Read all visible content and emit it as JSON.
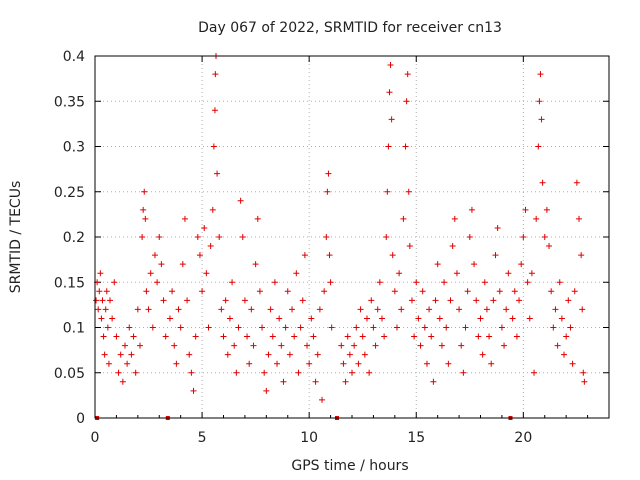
{
  "chart_data": {
    "type": "scatter",
    "title": "Day 067 of 2022, SRMTID for receiver cn13",
    "xlabel": "GPS time / hours",
    "ylabel": "SRMTID / TECUs",
    "xlim": [
      0,
      24
    ],
    "ylim": [
      0,
      0.4
    ],
    "x_ticks": [
      0,
      5,
      10,
      15,
      20
    ],
    "y_ticks": [
      0,
      0.05,
      0.1,
      0.15,
      0.2,
      0.25,
      0.3,
      0.35,
      0.4
    ],
    "grid": true,
    "marker": "+",
    "series_color": "#e00000",
    "zero_markers_x": [
      0.1,
      3.4,
      11.3,
      19.4
    ],
    "series": [
      {
        "name": "cn13",
        "points": [
          [
            0.05,
            0.13
          ],
          [
            0.1,
            0.15
          ],
          [
            0.15,
            0.12
          ],
          [
            0.2,
            0.14
          ],
          [
            0.25,
            0.16
          ],
          [
            0.3,
            0.11
          ],
          [
            0.35,
            0.13
          ],
          [
            0.4,
            0.09
          ],
          [
            0.45,
            0.07
          ],
          [
            0.5,
            0.12
          ],
          [
            0.55,
            0.14
          ],
          [
            0.6,
            0.1
          ],
          [
            0.65,
            0.06
          ],
          [
            0.7,
            0.13
          ],
          [
            0.8,
            0.11
          ],
          [
            0.9,
            0.15
          ],
          [
            1.0,
            0.09
          ],
          [
            1.1,
            0.05
          ],
          [
            1.2,
            0.07
          ],
          [
            1.3,
            0.04
          ],
          [
            1.4,
            0.08
          ],
          [
            1.5,
            0.06
          ],
          [
            1.6,
            0.1
          ],
          [
            1.7,
            0.07
          ],
          [
            1.8,
            0.09
          ],
          [
            1.9,
            0.05
          ],
          [
            2.0,
            0.12
          ],
          [
            2.1,
            0.08
          ],
          [
            2.2,
            0.2
          ],
          [
            2.25,
            0.23
          ],
          [
            2.3,
            0.25
          ],
          [
            2.35,
            0.22
          ],
          [
            2.4,
            0.14
          ],
          [
            2.5,
            0.12
          ],
          [
            2.6,
            0.16
          ],
          [
            2.7,
            0.1
          ],
          [
            2.8,
            0.18
          ],
          [
            2.9,
            0.15
          ],
          [
            3.0,
            0.2
          ],
          [
            3.1,
            0.17
          ],
          [
            3.2,
            0.13
          ],
          [
            3.3,
            0.09
          ],
          [
            3.5,
            0.11
          ],
          [
            3.6,
            0.14
          ],
          [
            3.7,
            0.08
          ],
          [
            3.8,
            0.06
          ],
          [
            3.9,
            0.12
          ],
          [
            4.0,
            0.1
          ],
          [
            4.1,
            0.17
          ],
          [
            4.2,
            0.22
          ],
          [
            4.3,
            0.13
          ],
          [
            4.4,
            0.07
          ],
          [
            4.5,
            0.05
          ],
          [
            4.6,
            0.03
          ],
          [
            4.7,
            0.09
          ],
          [
            4.8,
            0.2
          ],
          [
            4.9,
            0.18
          ],
          [
            5.0,
            0.14
          ],
          [
            5.1,
            0.21
          ],
          [
            5.2,
            0.16
          ],
          [
            5.3,
            0.1
          ],
          [
            5.4,
            0.19
          ],
          [
            5.5,
            0.23
          ],
          [
            5.55,
            0.3
          ],
          [
            5.6,
            0.34
          ],
          [
            5.62,
            0.38
          ],
          [
            5.65,
            0.4
          ],
          [
            5.7,
            0.27
          ],
          [
            5.8,
            0.2
          ],
          [
            5.9,
            0.12
          ],
          [
            6.0,
            0.09
          ],
          [
            6.1,
            0.13
          ],
          [
            6.2,
            0.07
          ],
          [
            6.3,
            0.11
          ],
          [
            6.4,
            0.15
          ],
          [
            6.5,
            0.08
          ],
          [
            6.6,
            0.05
          ],
          [
            6.7,
            0.1
          ],
          [
            6.8,
            0.24
          ],
          [
            6.9,
            0.2
          ],
          [
            7.0,
            0.13
          ],
          [
            7.1,
            0.09
          ],
          [
            7.2,
            0.06
          ],
          [
            7.3,
            0.12
          ],
          [
            7.4,
            0.08
          ],
          [
            7.5,
            0.17
          ],
          [
            7.6,
            0.22
          ],
          [
            7.7,
            0.14
          ],
          [
            7.8,
            0.1
          ],
          [
            7.9,
            0.05
          ],
          [
            8.0,
            0.03
          ],
          [
            8.1,
            0.07
          ],
          [
            8.2,
            0.12
          ],
          [
            8.3,
            0.09
          ],
          [
            8.4,
            0.15
          ],
          [
            8.5,
            0.06
          ],
          [
            8.6,
            0.11
          ],
          [
            8.7,
            0.08
          ],
          [
            8.8,
            0.04
          ],
          [
            8.9,
            0.1
          ],
          [
            9.0,
            0.14
          ],
          [
            9.1,
            0.07
          ],
          [
            9.2,
            0.12
          ],
          [
            9.3,
            0.09
          ],
          [
            9.4,
            0.16
          ],
          [
            9.5,
            0.05
          ],
          [
            9.6,
            0.1
          ],
          [
            9.7,
            0.13
          ],
          [
            9.8,
            0.18
          ],
          [
            9.9,
            0.08
          ],
          [
            10.0,
            0.06
          ],
          [
            10.1,
            0.11
          ],
          [
            10.2,
            0.09
          ],
          [
            10.3,
            0.04
          ],
          [
            10.4,
            0.07
          ],
          [
            10.5,
            0.12
          ],
          [
            10.6,
            0.02
          ],
          [
            10.7,
            0.14
          ],
          [
            10.8,
            0.2
          ],
          [
            10.85,
            0.25
          ],
          [
            10.9,
            0.27
          ],
          [
            10.95,
            0.18
          ],
          [
            11.0,
            0.15
          ],
          [
            11.05,
            0.1
          ],
          [
            11.5,
            0.08
          ],
          [
            11.6,
            0.06
          ],
          [
            11.7,
            0.04
          ],
          [
            11.8,
            0.09
          ],
          [
            11.9,
            0.07
          ],
          [
            12.0,
            0.05
          ],
          [
            12.1,
            0.08
          ],
          [
            12.2,
            0.1
          ],
          [
            12.3,
            0.06
          ],
          [
            12.4,
            0.12
          ],
          [
            12.5,
            0.09
          ],
          [
            12.6,
            0.07
          ],
          [
            12.7,
            0.11
          ],
          [
            12.8,
            0.05
          ],
          [
            12.9,
            0.13
          ],
          [
            13.0,
            0.1
          ],
          [
            13.1,
            0.08
          ],
          [
            13.2,
            0.12
          ],
          [
            13.3,
            0.15
          ],
          [
            13.4,
            0.11
          ],
          [
            13.5,
            0.09
          ],
          [
            13.6,
            0.2
          ],
          [
            13.65,
            0.25
          ],
          [
            13.7,
            0.3
          ],
          [
            13.75,
            0.36
          ],
          [
            13.8,
            0.39
          ],
          [
            13.85,
            0.33
          ],
          [
            13.9,
            0.18
          ],
          [
            14.0,
            0.14
          ],
          [
            14.1,
            0.1
          ],
          [
            14.2,
            0.16
          ],
          [
            14.3,
            0.12
          ],
          [
            14.4,
            0.22
          ],
          [
            14.5,
            0.3
          ],
          [
            14.55,
            0.35
          ],
          [
            14.6,
            0.38
          ],
          [
            14.65,
            0.25
          ],
          [
            14.7,
            0.19
          ],
          [
            14.8,
            0.13
          ],
          [
            14.9,
            0.09
          ],
          [
            15.0,
            0.15
          ],
          [
            15.1,
            0.11
          ],
          [
            15.2,
            0.08
          ],
          [
            15.3,
            0.14
          ],
          [
            15.4,
            0.1
          ],
          [
            15.5,
            0.06
          ],
          [
            15.6,
            0.12
          ],
          [
            15.7,
            0.09
          ],
          [
            15.8,
            0.04
          ],
          [
            15.9,
            0.13
          ],
          [
            16.0,
            0.17
          ],
          [
            16.1,
            0.11
          ],
          [
            16.2,
            0.08
          ],
          [
            16.3,
            0.15
          ],
          [
            16.4,
            0.1
          ],
          [
            16.5,
            0.06
          ],
          [
            16.6,
            0.13
          ],
          [
            16.7,
            0.19
          ],
          [
            16.8,
            0.22
          ],
          [
            16.9,
            0.16
          ],
          [
            17.0,
            0.12
          ],
          [
            17.1,
            0.08
          ],
          [
            17.2,
            0.05
          ],
          [
            17.3,
            0.1
          ],
          [
            17.4,
            0.14
          ],
          [
            17.5,
            0.2
          ],
          [
            17.6,
            0.23
          ],
          [
            17.7,
            0.17
          ],
          [
            17.8,
            0.13
          ],
          [
            17.9,
            0.09
          ],
          [
            18.0,
            0.11
          ],
          [
            18.1,
            0.07
          ],
          [
            18.2,
            0.15
          ],
          [
            18.3,
            0.12
          ],
          [
            18.4,
            0.09
          ],
          [
            18.5,
            0.06
          ],
          [
            18.6,
            0.13
          ],
          [
            18.7,
            0.18
          ],
          [
            18.8,
            0.21
          ],
          [
            18.9,
            0.14
          ],
          [
            19.0,
            0.1
          ],
          [
            19.1,
            0.08
          ],
          [
            19.2,
            0.12
          ],
          [
            19.3,
            0.16
          ],
          [
            19.5,
            0.11
          ],
          [
            19.6,
            0.14
          ],
          [
            19.7,
            0.09
          ],
          [
            19.8,
            0.13
          ],
          [
            19.9,
            0.17
          ],
          [
            20.0,
            0.2
          ],
          [
            20.1,
            0.23
          ],
          [
            20.2,
            0.15
          ],
          [
            20.3,
            0.11
          ],
          [
            20.4,
            0.16
          ],
          [
            20.5,
            0.05
          ],
          [
            20.6,
            0.22
          ],
          [
            20.7,
            0.3
          ],
          [
            20.75,
            0.35
          ],
          [
            20.8,
            0.38
          ],
          [
            20.85,
            0.33
          ],
          [
            20.9,
            0.26
          ],
          [
            21.0,
            0.2
          ],
          [
            21.1,
            0.23
          ],
          [
            21.2,
            0.19
          ],
          [
            21.3,
            0.14
          ],
          [
            21.4,
            0.1
          ],
          [
            21.5,
            0.12
          ],
          [
            21.6,
            0.08
          ],
          [
            21.7,
            0.15
          ],
          [
            21.8,
            0.11
          ],
          [
            21.9,
            0.07
          ],
          [
            22.0,
            0.09
          ],
          [
            22.1,
            0.13
          ],
          [
            22.2,
            0.1
          ],
          [
            22.3,
            0.06
          ],
          [
            22.4,
            0.14
          ],
          [
            22.5,
            0.26
          ],
          [
            22.6,
            0.22
          ],
          [
            22.7,
            0.18
          ],
          [
            22.75,
            0.12
          ],
          [
            22.8,
            0.05
          ],
          [
            22.85,
            0.04
          ]
        ]
      }
    ]
  }
}
